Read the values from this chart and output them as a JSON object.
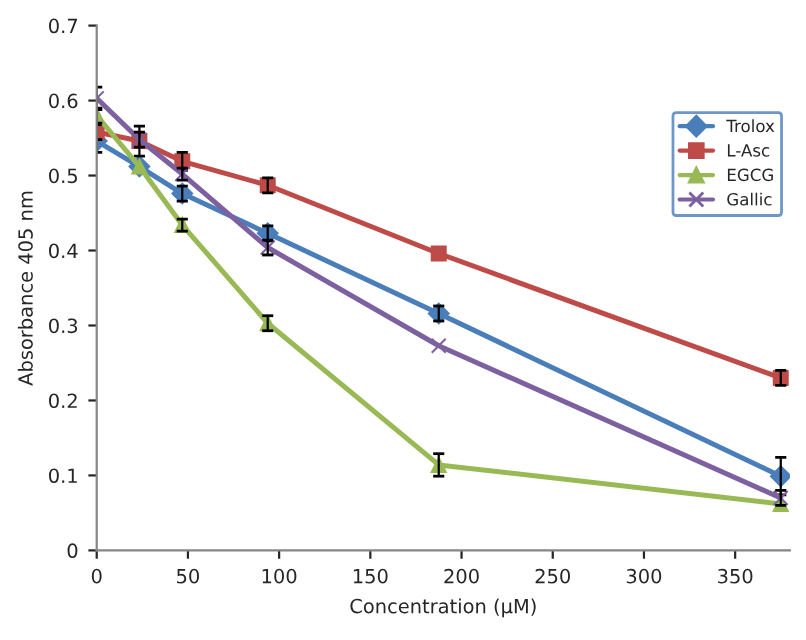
{
  "chart_data": {
    "type": "line",
    "xlabel": "Concentration (µM)",
    "ylabel": "Absorbance 405 nm",
    "x": [
      0,
      23.4,
      46.9,
      93.75,
      187.5,
      375
    ],
    "series": [
      {
        "name": "Trolox",
        "color": "#4a7ebb",
        "marker": "diamond",
        "values": [
          0.546,
          0.512,
          0.476,
          0.423,
          0.316,
          0.099
        ],
        "errors": [
          0.015,
          null,
          0.01,
          0.01,
          0.01,
          0.025
        ]
      },
      {
        "name": "L-Asc",
        "color": "#be4b48",
        "marker": "square",
        "values": [
          0.558,
          0.546,
          0.519,
          0.487,
          0.396,
          0.23
        ],
        "errors": [
          0.01,
          0.02,
          0.012,
          0.01,
          null,
          0.01
        ]
      },
      {
        "name": "EGCG",
        "color": "#98b954",
        "marker": "triangle",
        "values": [
          0.58,
          0.512,
          0.434,
          0.303,
          0.114,
          0.062
        ],
        "errors": [
          0.01,
          null,
          0.008,
          0.01,
          0.015,
          null
        ]
      },
      {
        "name": "Gallic",
        "color": "#7d60a0",
        "marker": "cross",
        "values": [
          0.603,
          0.548,
          0.502,
          0.404,
          0.273,
          0.07
        ],
        "errors": [
          0.015,
          0.01,
          0.008,
          0.01,
          null,
          0.01
        ]
      }
    ],
    "xlim": [
      0,
      380
    ],
    "xticks": [
      0,
      50,
      100,
      150,
      200,
      250,
      300,
      350
    ],
    "ylim": [
      0,
      0.7
    ],
    "yticks": [
      0,
      0.1,
      0.2,
      0.3,
      0.4,
      0.5,
      0.6,
      0.7
    ],
    "grid": false,
    "legend": "top right",
    "line_style": "solid"
  }
}
